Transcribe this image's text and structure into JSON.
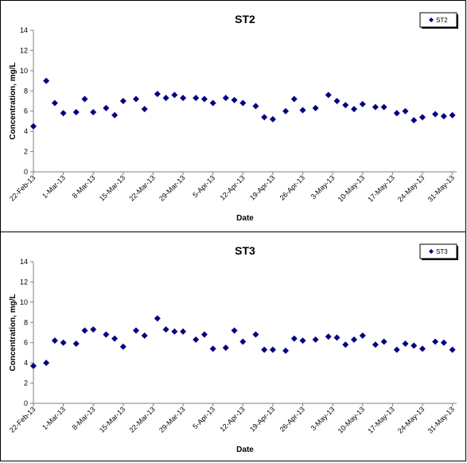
{
  "chart_data": [
    {
      "type": "scatter",
      "title": "ST2",
      "xlabel": "Date",
      "ylabel": "Concentration, mg/L",
      "ylim": [
        0,
        14
      ],
      "yticks": [
        "0",
        "2",
        "4",
        "6",
        "8",
        "10",
        "12",
        "14"
      ],
      "xticks": [
        "22-Feb-13",
        "1-Mar-13",
        "8-Mar-13",
        "15-Mar-13",
        "22-Mar-13",
        "29-Mar-13",
        "5-Apr-13",
        "12-Apr-13",
        "19-Apr-13",
        "26-Apr-13",
        "3-May-13",
        "10-May-13",
        "17-May-13",
        "24-May-13",
        "31-May-13"
      ],
      "xlim": [
        "2013-02-22",
        "2013-06-01"
      ],
      "grid": false,
      "legend": "top-right",
      "color": "#000080",
      "series": [
        {
          "name": "ST2",
          "x": [
            "2013-02-22",
            "2013-02-25",
            "2013-02-27",
            "2013-03-01",
            "2013-03-04",
            "2013-03-06",
            "2013-03-08",
            "2013-03-11",
            "2013-03-13",
            "2013-03-15",
            "2013-03-18",
            "2013-03-20",
            "2013-03-23",
            "2013-03-25",
            "2013-03-27",
            "2013-03-29",
            "2013-04-01",
            "2013-04-03",
            "2013-04-05",
            "2013-04-08",
            "2013-04-10",
            "2013-04-12",
            "2013-04-15",
            "2013-04-17",
            "2013-04-19",
            "2013-04-22",
            "2013-04-24",
            "2013-04-26",
            "2013-04-29",
            "2013-05-02",
            "2013-05-04",
            "2013-05-06",
            "2013-05-08",
            "2013-05-10",
            "2013-05-13",
            "2013-05-15",
            "2013-05-18",
            "2013-05-20",
            "2013-05-22",
            "2013-05-24",
            "2013-05-27",
            "2013-05-29",
            "2013-05-31"
          ],
          "y": [
            4.5,
            9.0,
            6.8,
            5.8,
            5.9,
            7.2,
            5.9,
            6.3,
            5.6,
            7.0,
            7.2,
            6.2,
            7.7,
            7.3,
            7.6,
            7.3,
            7.3,
            7.2,
            6.8,
            7.3,
            7.1,
            6.8,
            6.5,
            5.4,
            5.2,
            6.0,
            7.2,
            6.1,
            6.3,
            7.6,
            7.0,
            6.6,
            6.2,
            6.7,
            6.4,
            6.4,
            5.8,
            6.0,
            5.1,
            5.4,
            5.7,
            5.5,
            5.6
          ]
        }
      ]
    },
    {
      "type": "scatter",
      "title": "ST3",
      "xlabel": "Date",
      "ylabel": "Concentration, mg/L",
      "ylim": [
        0,
        14
      ],
      "yticks": [
        "0",
        "2",
        "4",
        "6",
        "8",
        "10",
        "12",
        "14"
      ],
      "xticks": [
        "22-Feb-13",
        "1-Mar-13",
        "8-Mar-13",
        "15-Mar-13",
        "22-Mar-13",
        "29-Mar-13",
        "5-Apr-13",
        "12-Apr-13",
        "19-Apr-13",
        "26-Apr-13",
        "3-May-13",
        "10-May-13",
        "17-May-13",
        "24-May-13",
        "31-May-13"
      ],
      "xlim": [
        "2013-02-22",
        "2013-06-01"
      ],
      "grid": false,
      "legend": "top-right",
      "color": "#000080",
      "series": [
        {
          "name": "ST3",
          "x": [
            "2013-02-22",
            "2013-02-25",
            "2013-02-27",
            "2013-03-01",
            "2013-03-04",
            "2013-03-06",
            "2013-03-08",
            "2013-03-11",
            "2013-03-13",
            "2013-03-15",
            "2013-03-18",
            "2013-03-20",
            "2013-03-23",
            "2013-03-25",
            "2013-03-27",
            "2013-03-29",
            "2013-04-01",
            "2013-04-03",
            "2013-04-05",
            "2013-04-08",
            "2013-04-10",
            "2013-04-12",
            "2013-04-15",
            "2013-04-17",
            "2013-04-19",
            "2013-04-22",
            "2013-04-24",
            "2013-04-26",
            "2013-04-29",
            "2013-05-02",
            "2013-05-04",
            "2013-05-06",
            "2013-05-08",
            "2013-05-10",
            "2013-05-13",
            "2013-05-15",
            "2013-05-18",
            "2013-05-20",
            "2013-05-22",
            "2013-05-24",
            "2013-05-27",
            "2013-05-29",
            "2013-05-31"
          ],
          "y": [
            3.7,
            4.0,
            6.2,
            6.0,
            5.9,
            7.2,
            7.3,
            6.8,
            6.4,
            5.6,
            7.2,
            6.7,
            8.4,
            7.3,
            7.1,
            7.1,
            6.3,
            6.8,
            5.4,
            5.5,
            7.2,
            6.1,
            6.8,
            5.3,
            5.3,
            5.2,
            6.4,
            6.2,
            6.3,
            6.6,
            6.5,
            5.8,
            6.3,
            6.7,
            5.8,
            6.1,
            5.3,
            5.9,
            5.7,
            5.4,
            6.1,
            6.0,
            5.3
          ]
        }
      ]
    }
  ]
}
